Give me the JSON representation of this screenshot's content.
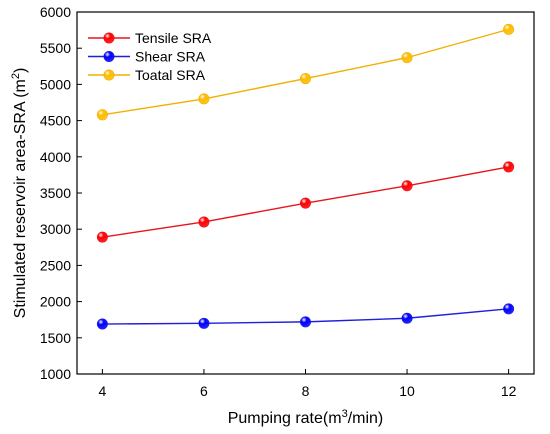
{
  "chart_data": {
    "type": "line",
    "x": [
      4,
      6,
      8,
      10,
      12
    ],
    "xlim": [
      3.5,
      12.5
    ],
    "ylim": [
      1000,
      6000
    ],
    "x_ticks": [
      "4",
      "6",
      "8",
      "10",
      "12"
    ],
    "y_ticks": [
      "1000",
      "1500",
      "2000",
      "2500",
      "3000",
      "3500",
      "4000",
      "4500",
      "5000",
      "5500",
      "6000"
    ],
    "xlabel_parts": [
      "Pumping rate(m",
      "3",
      "/min)"
    ],
    "ylabel_parts": [
      "Stimulated reservoir area-SRA (m",
      "2",
      ")"
    ],
    "legend_position": "top-left",
    "grid": false,
    "series": [
      {
        "name": "Tensile SRA",
        "color": "#e8141b",
        "marker_color": "#ff0000",
        "values": [
          2890,
          3100,
          3360,
          3600,
          3860
        ]
      },
      {
        "name": "Shear SRA",
        "color": "#1f1fdc",
        "marker_color": "#0000ff",
        "values": [
          1690,
          1700,
          1720,
          1770,
          1900
        ]
      },
      {
        "name": "Toatal SRA",
        "color": "#f0b000",
        "marker_color": "#ffbb00",
        "values": [
          4580,
          4800,
          5080,
          5370,
          5760
        ]
      }
    ]
  }
}
